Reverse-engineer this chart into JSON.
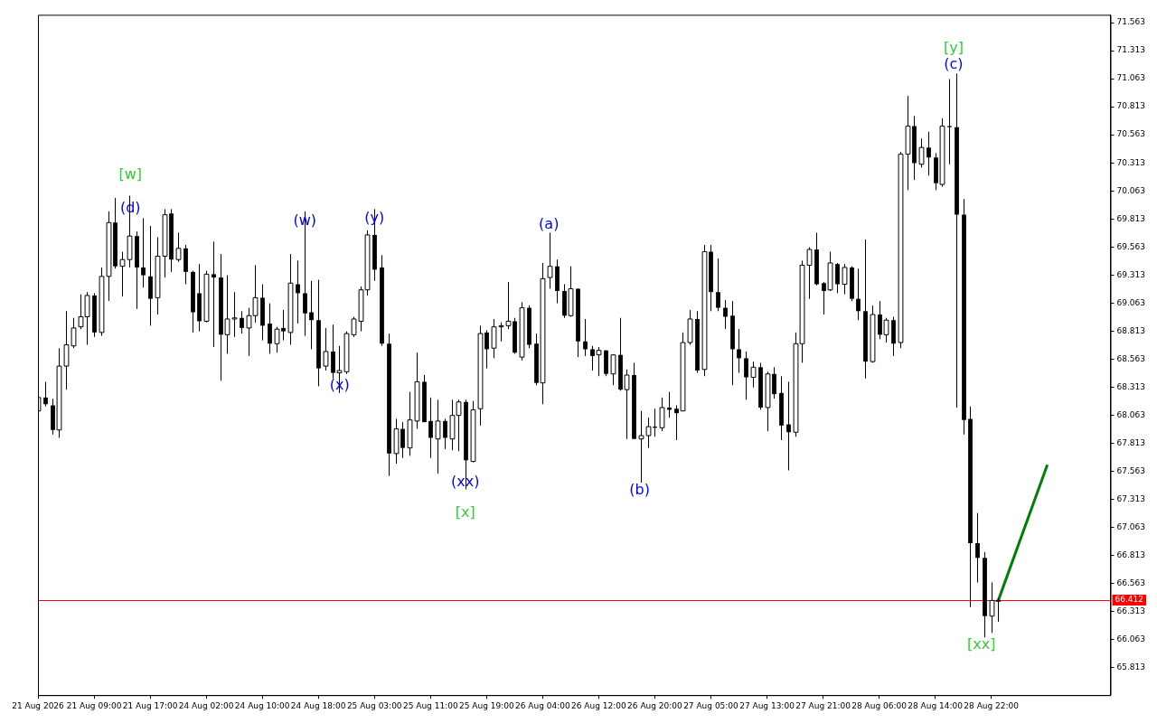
{
  "chart_data": {
    "type": "candlestick",
    "categories": [
      "21 Aug 2026",
      null,
      null,
      null,
      null,
      null,
      null,
      null,
      "21 Aug 09:00",
      null,
      null,
      null,
      null,
      null,
      null,
      null,
      "21 Aug 17:00",
      null,
      null,
      null,
      null,
      null,
      null,
      null,
      "24 Aug 02:00",
      null,
      null,
      null,
      null,
      null,
      null,
      null,
      "24 Aug 10:00",
      null,
      null,
      null,
      null,
      null,
      null,
      null,
      "24 Aug 18:00",
      null,
      null,
      null,
      null,
      null,
      null,
      null,
      "25 Aug 03:00",
      null,
      null,
      null,
      null,
      null,
      null,
      null,
      "25 Aug 11:00",
      null,
      null,
      null,
      null,
      null,
      null,
      null,
      "25 Aug 19:00",
      null,
      null,
      null,
      null,
      null,
      null,
      null,
      "26 Aug 04:00",
      null,
      null,
      null,
      null,
      null,
      null,
      null,
      "26 Aug 12:00",
      null,
      null,
      null,
      null,
      null,
      null,
      null,
      "26 Aug 20:00",
      null,
      null,
      null,
      null,
      null,
      null,
      null,
      "27 Aug 05:00",
      null,
      null,
      null,
      null,
      null,
      null,
      null,
      "27 Aug 13:00",
      null,
      null,
      null,
      null,
      null,
      null,
      null,
      "27 Aug 21:00",
      null,
      null,
      null,
      null,
      null,
      null,
      null,
      "28 Aug 06:00",
      null,
      null,
      null,
      null,
      null,
      null,
      null,
      "28 Aug 14:00",
      null,
      null,
      null,
      null,
      null,
      null,
      null,
      "28 Aug 22:00",
      null,
      null,
      null,
      null,
      null,
      null,
      null,
      null,
      null,
      null,
      null,
      null,
      null,
      null,
      null,
      null,
      null
    ],
    "ohlc": [
      [
        68.1,
        68.22,
        68.09,
        68.22
      ],
      [
        68.22,
        68.36,
        68.14,
        68.16
      ],
      [
        68.15,
        68.21,
        67.89,
        67.93
      ],
      [
        67.93,
        68.66,
        67.86,
        68.5
      ],
      [
        68.5,
        68.99,
        68.29,
        68.69
      ],
      [
        68.68,
        68.93,
        68.66,
        68.84
      ],
      [
        68.85,
        69.14,
        68.83,
        68.94
      ],
      [
        68.94,
        69.16,
        68.69,
        69.13
      ],
      [
        69.13,
        69.15,
        68.76,
        68.8
      ],
      [
        68.8,
        69.38,
        68.77,
        69.3
      ],
      [
        69.3,
        69.88,
        69.08,
        69.78
      ],
      [
        69.78,
        70.0,
        69.37,
        69.39
      ],
      [
        69.39,
        69.52,
        69.12,
        69.45
      ],
      [
        69.45,
        70.02,
        69.38,
        69.66
      ],
      [
        69.66,
        69.7,
        69.01,
        69.38
      ],
      [
        69.38,
        69.82,
        69.2,
        69.31
      ],
      [
        69.3,
        69.75,
        68.86,
        69.1
      ],
      [
        69.11,
        69.65,
        68.96,
        69.48
      ],
      [
        69.48,
        69.9,
        69.29,
        69.85
      ],
      [
        69.86,
        69.9,
        69.34,
        69.45
      ],
      [
        69.45,
        69.69,
        69.43,
        69.55
      ],
      [
        69.55,
        69.58,
        69.23,
        69.34
      ],
      [
        69.34,
        69.35,
        68.8,
        68.98
      ],
      [
        69.15,
        69.41,
        68.81,
        68.9
      ],
      [
        68.9,
        69.35,
        68.89,
        69.32
      ],
      [
        69.32,
        69.61,
        68.67,
        69.29
      ],
      [
        69.29,
        69.5,
        68.37,
        68.78
      ],
      [
        68.78,
        69.31,
        68.61,
        68.92
      ],
      [
        68.92,
        69.16,
        68.76,
        68.93
      ],
      [
        68.93,
        68.99,
        68.79,
        68.84
      ],
      [
        68.84,
        69.02,
        68.59,
        68.95
      ],
      [
        68.95,
        69.4,
        68.89,
        69.11
      ],
      [
        69.11,
        69.23,
        68.73,
        68.86
      ],
      [
        68.88,
        69.06,
        68.61,
        68.7
      ],
      [
        68.7,
        68.85,
        68.62,
        68.83
      ],
      [
        68.84,
        69.0,
        68.73,
        68.81
      ],
      [
        68.8,
        69.5,
        68.69,
        69.24
      ],
      [
        69.23,
        69.44,
        68.88,
        69.15
      ],
      [
        69.15,
        69.88,
        68.77,
        68.97
      ],
      [
        68.98,
        69.26,
        68.65,
        68.91
      ],
      [
        68.91,
        69.27,
        68.32,
        68.48
      ],
      [
        68.5,
        68.84,
        68.46,
        68.63
      ],
      [
        68.63,
        68.87,
        68.39,
        68.44
      ],
      [
        68.44,
        68.68,
        68.26,
        68.46
      ],
      [
        68.45,
        68.81,
        68.43,
        68.79
      ],
      [
        68.78,
        68.94,
        68.76,
        68.92
      ],
      [
        68.9,
        69.21,
        68.81,
        69.18
      ],
      [
        69.18,
        69.71,
        69.13,
        69.67
      ],
      [
        69.67,
        69.9,
        69.26,
        69.36
      ],
      [
        69.38,
        69.49,
        68.68,
        68.7
      ],
      [
        68.7,
        68.79,
        67.52,
        67.72
      ],
      [
        67.72,
        68.03,
        67.63,
        67.94
      ],
      [
        67.94,
        68.0,
        67.68,
        67.77
      ],
      [
        67.77,
        68.27,
        67.7,
        68.02
      ],
      [
        68.01,
        68.62,
        67.94,
        68.36
      ],
      [
        68.36,
        68.42,
        68.0,
        68.0
      ],
      [
        68.01,
        68.22,
        67.68,
        67.86
      ],
      [
        67.85,
        68.2,
        67.54,
        68.01
      ],
      [
        68.01,
        68.03,
        67.76,
        67.86
      ],
      [
        67.85,
        68.2,
        67.75,
        68.06
      ],
      [
        68.06,
        68.2,
        67.74,
        68.18
      ],
      [
        68.18,
        68.2,
        67.4,
        67.66
      ],
      [
        67.65,
        68.19,
        67.64,
        68.11
      ],
      [
        68.12,
        68.86,
        67.97,
        68.79
      ],
      [
        68.8,
        68.82,
        68.48,
        68.65
      ],
      [
        68.66,
        68.92,
        68.57,
        68.85
      ],
      [
        68.85,
        68.89,
        68.72,
        68.86
      ],
      [
        68.86,
        69.25,
        68.83,
        68.9
      ],
      [
        68.9,
        68.93,
        68.61,
        68.62
      ],
      [
        68.58,
        69.07,
        68.55,
        69.02
      ],
      [
        69.02,
        69.04,
        68.66,
        68.69
      ],
      [
        68.7,
        68.79,
        68.33,
        68.35
      ],
      [
        68.35,
        69.42,
        68.16,
        69.28
      ],
      [
        69.29,
        69.69,
        69.19,
        69.39
      ],
      [
        69.39,
        69.45,
        69.06,
        69.17
      ],
      [
        69.17,
        69.23,
        68.93,
        68.95
      ],
      [
        68.95,
        69.39,
        68.94,
        69.19
      ],
      [
        69.19,
        69.19,
        68.58,
        68.72
      ],
      [
        68.72,
        68.92,
        68.59,
        68.65
      ],
      [
        68.65,
        68.68,
        68.46,
        68.59
      ],
      [
        68.6,
        68.67,
        68.41,
        68.64
      ],
      [
        68.64,
        68.64,
        68.41,
        68.43
      ],
      [
        68.43,
        68.6,
        68.33,
        68.6
      ],
      [
        68.6,
        68.93,
        68.28,
        68.29
      ],
      [
        68.29,
        68.47,
        67.85,
        68.42
      ],
      [
        68.42,
        68.53,
        67.85,
        67.85
      ],
      [
        67.85,
        68.1,
        67.46,
        67.88
      ],
      [
        67.88,
        68.04,
        67.77,
        67.96
      ],
      [
        67.96,
        68.12,
        67.87,
        67.95
      ],
      [
        67.95,
        68.22,
        67.92,
        68.13
      ],
      [
        68.13,
        68.27,
        68.04,
        68.11
      ],
      [
        68.12,
        68.15,
        67.84,
        68.08
      ],
      [
        68.1,
        68.8,
        68.1,
        68.71
      ],
      [
        68.71,
        69.0,
        68.69,
        68.92
      ],
      [
        68.92,
        68.99,
        68.44,
        68.46
      ],
      [
        68.47,
        69.58,
        68.41,
        69.52
      ],
      [
        69.52,
        69.58,
        68.99,
        69.16
      ],
      [
        69.16,
        69.46,
        68.99,
        69.02
      ],
      [
        69.02,
        69.09,
        68.83,
        68.94
      ],
      [
        68.95,
        69.08,
        68.33,
        68.65
      ],
      [
        68.65,
        68.83,
        68.44,
        68.57
      ],
      [
        68.57,
        68.63,
        68.2,
        68.4
      ],
      [
        68.4,
        68.54,
        68.31,
        68.49
      ],
      [
        68.49,
        68.53,
        68.11,
        68.13
      ],
      [
        68.13,
        68.45,
        67.92,
        68.43
      ],
      [
        68.43,
        68.49,
        68.21,
        68.25
      ],
      [
        68.26,
        68.41,
        67.84,
        67.97
      ],
      [
        67.98,
        68.36,
        67.57,
        67.91
      ],
      [
        67.91,
        68.8,
        67.87,
        68.7
      ],
      [
        68.7,
        69.44,
        68.53,
        69.4
      ],
      [
        69.4,
        69.56,
        69.1,
        69.54
      ],
      [
        69.54,
        69.69,
        69.22,
        69.23
      ],
      [
        69.24,
        69.25,
        68.96,
        69.17
      ],
      [
        69.18,
        69.52,
        69.17,
        69.42
      ],
      [
        69.41,
        69.42,
        69.15,
        69.23
      ],
      [
        69.23,
        69.41,
        69.14,
        69.38
      ],
      [
        69.38,
        69.39,
        69.08,
        69.1
      ],
      [
        69.1,
        69.37,
        68.91,
        68.99
      ],
      [
        68.99,
        69.63,
        68.39,
        68.54
      ],
      [
        68.54,
        69.04,
        68.53,
        68.96
      ],
      [
        68.96,
        69.08,
        68.74,
        68.78
      ],
      [
        68.78,
        68.93,
        68.71,
        68.91
      ],
      [
        68.91,
        68.94,
        68.59,
        68.7
      ],
      [
        68.71,
        70.41,
        68.66,
        70.39
      ],
      [
        70.39,
        70.91,
        70.07,
        70.64
      ],
      [
        70.64,
        70.73,
        70.16,
        70.31
      ],
      [
        70.3,
        70.53,
        70.27,
        70.45
      ],
      [
        70.45,
        70.59,
        70.2,
        70.36
      ],
      [
        70.36,
        70.4,
        70.07,
        70.13
      ],
      [
        70.12,
        70.71,
        70.1,
        70.64
      ],
      [
        70.64,
        71.06,
        70.3,
        70.63
      ],
      [
        70.63,
        71.11,
        68.13,
        69.85
      ],
      [
        69.85,
        69.99,
        67.89,
        68.02
      ],
      [
        68.03,
        68.14,
        66.35,
        66.92
      ],
      [
        66.92,
        67.19,
        66.57,
        66.79
      ],
      [
        66.79,
        66.84,
        66.08,
        66.27
      ],
      [
        66.27,
        66.57,
        66.12,
        66.41
      ],
      [
        66.41,
        66.43,
        66.22,
        66.41
      ],
      null,
      null,
      null,
      null,
      null,
      null,
      null,
      null,
      null,
      null,
      null,
      null,
      null,
      null,
      null,
      null
    ],
    "series": [
      {
        "type": "line",
        "color": "#008000",
        "values": [
          null,
          null,
          null,
          null,
          null,
          null,
          null,
          null,
          null,
          null,
          null,
          null,
          null,
          null,
          null,
          null,
          null,
          null,
          null,
          null,
          null,
          null,
          null,
          null,
          null,
          null,
          null,
          null,
          null,
          null,
          null,
          null,
          null,
          null,
          null,
          null,
          null,
          null,
          null,
          null,
          null,
          null,
          null,
          null,
          null,
          null,
          null,
          null,
          null,
          null,
          null,
          null,
          null,
          null,
          null,
          null,
          null,
          null,
          null,
          null,
          null,
          null,
          null,
          null,
          null,
          null,
          null,
          null,
          null,
          null,
          null,
          null,
          null,
          null,
          null,
          null,
          null,
          null,
          null,
          null,
          null,
          null,
          null,
          null,
          null,
          null,
          null,
          null,
          null,
          null,
          null,
          null,
          null,
          null,
          null,
          null,
          null,
          null,
          null,
          null,
          null,
          null,
          null,
          null,
          null,
          null,
          null,
          null,
          null,
          null,
          null,
          null,
          null,
          null,
          null,
          null,
          null,
          null,
          null,
          null,
          null,
          null,
          null,
          null,
          null,
          null,
          null,
          null,
          null,
          null,
          null,
          null,
          null,
          null,
          null,
          null,
          null,
          66.41,
          null,
          null,
          null,
          null,
          null,
          null,
          67.62,
          null,
          null,
          null,
          null,
          null,
          null,
          null,
          null,
          null
        ]
      }
    ],
    "ylim": [
      65.565,
      71.633
    ],
    "yticks": [
      65.813,
      66.063,
      66.313,
      66.563,
      66.813,
      67.063,
      67.313,
      67.563,
      67.813,
      68.063,
      68.313,
      68.563,
      68.813,
      69.063,
      69.313,
      69.563,
      69.813,
      70.063,
      70.313,
      70.563,
      70.813,
      71.063,
      71.313,
      71.563
    ],
    "ref_lines": [
      {
        "axis": "y",
        "value": 66.412,
        "label": "66.412",
        "color": "#ff0000"
      }
    ],
    "annotations": [
      "[w]",
      "(d)",
      "(w)",
      "(x)",
      "(y)",
      "(xx)",
      "[x]",
      "(a)",
      "(b)",
      "[y]",
      "(c)",
      "[xx]"
    ],
    "grid": false,
    "legend": false
  }
}
